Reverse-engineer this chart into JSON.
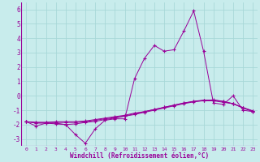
{
  "xlabel": "Windchill (Refroidissement éolien,°C)",
  "bg_color": "#c8ecec",
  "grid_color": "#a8d8d8",
  "line_color": "#990099",
  "xlim": [
    -0.5,
    23.5
  ],
  "ylim": [
    -3.5,
    6.5
  ],
  "xticks": [
    0,
    1,
    2,
    3,
    4,
    5,
    6,
    7,
    8,
    9,
    10,
    11,
    12,
    13,
    14,
    15,
    16,
    17,
    18,
    19,
    20,
    21,
    22,
    23
  ],
  "yticks": [
    -3,
    -2,
    -1,
    0,
    1,
    2,
    3,
    4,
    5,
    6
  ],
  "series": [
    [
      -1.8,
      -2.1,
      -1.9,
      -1.9,
      -2.0,
      -2.7,
      -3.3,
      -2.3,
      -1.7,
      -1.6,
      -1.6,
      1.2,
      2.6,
      3.5,
      3.1,
      3.2,
      4.5,
      5.9,
      3.1,
      -0.5,
      -0.6,
      0.0,
      -1.0,
      -1.1
    ],
    [
      -1.8,
      -1.85,
      -1.85,
      -1.8,
      -1.8,
      -1.8,
      -1.75,
      -1.65,
      -1.55,
      -1.45,
      -1.35,
      -1.2,
      -1.1,
      -0.95,
      -0.8,
      -0.65,
      -0.5,
      -0.4,
      -0.35,
      -0.35,
      -0.45,
      -0.55,
      -0.85,
      -1.1
    ],
    [
      -1.8,
      -1.85,
      -1.85,
      -1.85,
      -1.85,
      -1.85,
      -1.8,
      -1.7,
      -1.6,
      -1.5,
      -1.4,
      -1.25,
      -1.1,
      -0.95,
      -0.8,
      -0.65,
      -0.5,
      -0.38,
      -0.3,
      -0.3,
      -0.4,
      -0.55,
      -0.82,
      -1.05
    ],
    [
      -1.8,
      -1.9,
      -1.9,
      -1.95,
      -2.0,
      -1.95,
      -1.85,
      -1.78,
      -1.65,
      -1.55,
      -1.42,
      -1.3,
      -1.15,
      -1.0,
      -0.85,
      -0.7,
      -0.55,
      -0.42,
      -0.32,
      -0.28,
      -0.38,
      -0.55,
      -0.82,
      -1.05
    ]
  ]
}
